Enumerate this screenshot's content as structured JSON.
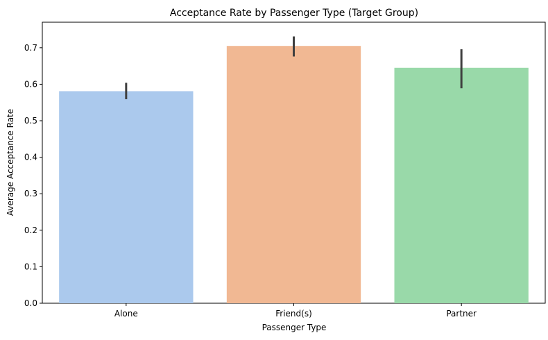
{
  "chart_data": {
    "type": "bar",
    "title": "Acceptance Rate by Passenger Type (Target Group)",
    "xlabel": "Passenger Type",
    "ylabel": "Average Acceptance Rate",
    "categories": [
      "Alone",
      "Friend(s)",
      "Partner"
    ],
    "values": [
      0.581,
      0.705,
      0.645
    ],
    "error_bars": [
      {
        "low": 0.559,
        "high": 0.604
      },
      {
        "low": 0.676,
        "high": 0.731
      },
      {
        "low": 0.589,
        "high": 0.696
      }
    ],
    "colors": [
      "#abc9ed",
      "#f1b893",
      "#99d9a9"
    ],
    "error_color": "#3f3f3f",
    "ylim": [
      0,
      0.77
    ],
    "yticks": [
      "0.0",
      "0.1",
      "0.2",
      "0.3",
      "0.4",
      "0.5",
      "0.6",
      "0.7"
    ],
    "grid": false,
    "legend": "none"
  }
}
